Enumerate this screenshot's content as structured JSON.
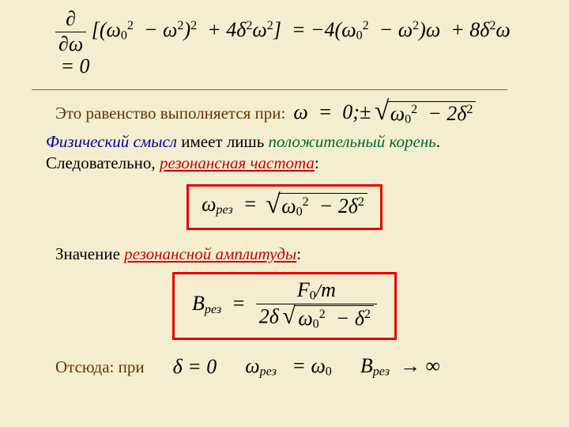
{
  "slide": {
    "background_color": "#f4eed1",
    "rule_color": "#666666"
  },
  "colors": {
    "brown": "#663300",
    "blue": "#000099",
    "green": "#006633",
    "red": "#cc0000",
    "box_red": "#e60000",
    "black": "#000000"
  },
  "text": {
    "line2_lead": "Это равенство выполняется при:",
    "phys_sense": "Физический смысл",
    "phys_mid": " имеет лишь ",
    "pos_root": "положительный корень",
    "dot": ".",
    "sled": "Следовательно,  ",
    "res_freq": "резонансная частота",
    "colon": ":",
    "amp_lead": "Значение ",
    "amp_red": "резонансной амплитуды",
    "bottom_lead": "Отсюда: при"
  },
  "math": {
    "omega": "ω",
    "omega0_sq": "ω",
    "delta": "δ",
    "F0": "F",
    "m": "m",
    "B": "B",
    "rez_sub": "рез",
    "zero": "0",
    "two": "2",
    "four": "4",
    "eight": "8",
    "minus": "−",
    "plus": "+",
    "eq": "=",
    "pm": "±",
    "semicolon": "0;",
    "arrow": "→",
    "inf": "∞",
    "partial": "∂",
    "lbrack": "[(",
    "rbrack": "]",
    "paren_open": "(",
    "paren_close": ")",
    "slash": "/"
  }
}
